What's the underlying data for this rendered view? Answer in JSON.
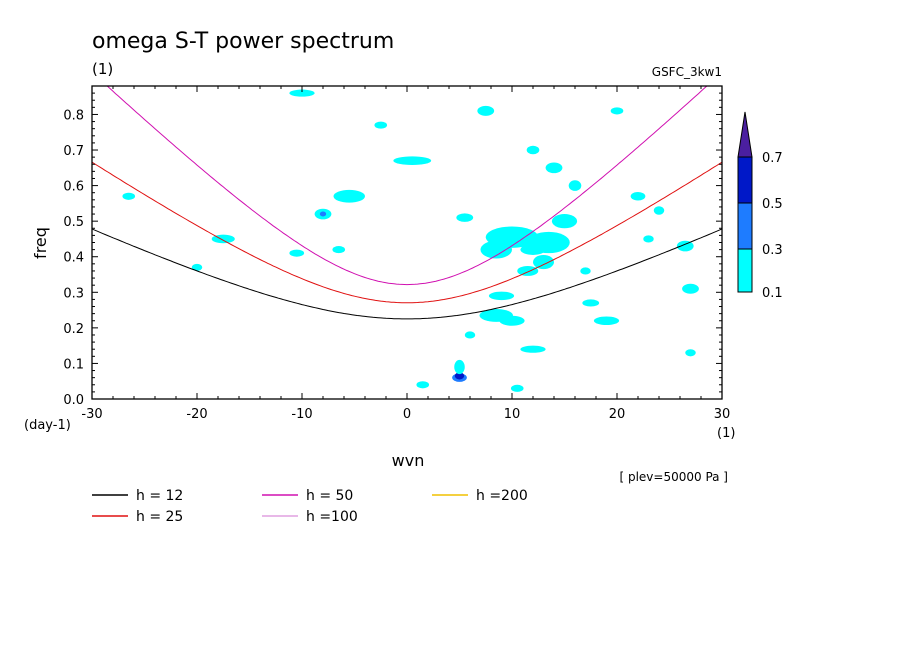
{
  "chart_data": {
    "type": "contour",
    "title": "omega S-T power spectrum",
    "subtitle": "(1)",
    "model": "GSFC_3kw1",
    "xlabel": "wvn",
    "ylabel": "freq",
    "x_unit": "(1)",
    "y_unit": "(day-1)",
    "level_note": "[ plev=50000 Pa ]",
    "xlim": [
      -30,
      30
    ],
    "ylim": [
      0,
      0.88
    ],
    "xticks": [
      -30,
      -20,
      -10,
      0,
      10,
      20,
      30
    ],
    "xtick_labels": [
      "-30",
      "-20",
      "-10",
      "0",
      "10",
      "20",
      "30"
    ],
    "yticks": [
      0,
      0.1,
      0.2,
      0.3,
      0.4,
      0.5,
      0.6,
      0.7,
      0.8
    ],
    "ytick_labels": [
      "0.0",
      "0.1",
      "0.2",
      "0.3",
      "0.4",
      "0.5",
      "0.6",
      "0.7",
      "0.8"
    ],
    "colorbar": {
      "levels": [
        "0.1",
        "0.3",
        "0.5",
        "0.7"
      ],
      "colors": [
        "#00ffff",
        "#1e7cff",
        "#0018c8",
        "#4b1fa0"
      ]
    },
    "series": [
      {
        "name": "h = 12",
        "equivalent_depth": 12,
        "color": "#000000"
      },
      {
        "name": "h = 25",
        "equivalent_depth": 25,
        "color": "#e01010"
      },
      {
        "name": "h = 50",
        "equivalent_depth": 50,
        "color": "#d010b0"
      },
      {
        "name": "h =100",
        "equivalent_depth": 100,
        "color": "#e0a0e0"
      },
      {
        "name": "h =200",
        "equivalent_depth": 200,
        "color": "#f0c000"
      }
    ],
    "blobs": [
      [
        5,
        0.06,
        0.7,
        0.012,
        1
      ],
      [
        5,
        0.065,
        0.45,
        0.01,
        2
      ],
      [
        5,
        0.09,
        0.5,
        0.02,
        0
      ],
      [
        10.5,
        0.465,
        1.2,
        0.01,
        2
      ],
      [
        10,
        0.455,
        2.5,
        0.03,
        0
      ],
      [
        8.5,
        0.42,
        1.5,
        0.025,
        0
      ],
      [
        12,
        0.42,
        1.2,
        0.015,
        0
      ],
      [
        13.5,
        0.44,
        2,
        0.03,
        0
      ],
      [
        13,
        0.385,
        1,
        0.02,
        0
      ],
      [
        8.5,
        0.24,
        0.6,
        0.01,
        1
      ],
      [
        8.5,
        0.235,
        1.6,
        0.018,
        0
      ],
      [
        10,
        0.22,
        1.2,
        0.014,
        0
      ],
      [
        12,
        0.14,
        1.2,
        0.01,
        0
      ],
      [
        9,
        0.29,
        1.2,
        0.012,
        0
      ],
      [
        11.5,
        0.36,
        1,
        0.014,
        0
      ],
      [
        -5.5,
        0.57,
        1.5,
        0.018,
        0
      ],
      [
        -8,
        0.52,
        0.8,
        0.015,
        0
      ],
      [
        -8,
        0.52,
        0.3,
        0.007,
        1
      ],
      [
        0.5,
        0.67,
        1.8,
        0.012,
        0
      ],
      [
        -17.5,
        0.45,
        1.1,
        0.012,
        0
      ],
      [
        -10.5,
        0.41,
        0.7,
        0.01,
        0
      ],
      [
        7.5,
        0.81,
        0.8,
        0.014,
        0
      ],
      [
        14,
        0.65,
        0.8,
        0.015,
        0
      ],
      [
        16,
        0.6,
        0.6,
        0.015,
        0
      ],
      [
        12,
        0.7,
        0.6,
        0.012,
        0
      ],
      [
        15,
        0.5,
        1.2,
        0.02,
        0
      ],
      [
        19,
        0.22,
        1.2,
        0.012,
        0
      ],
      [
        17.5,
        0.27,
        0.8,
        0.01,
        0
      ],
      [
        26.5,
        0.43,
        0.8,
        0.015,
        0
      ],
      [
        27,
        0.31,
        0.8,
        0.014,
        0
      ],
      [
        22,
        0.57,
        0.7,
        0.012,
        0
      ],
      [
        24,
        0.53,
        0.5,
        0.012,
        0
      ],
      [
        -10,
        0.86,
        1.2,
        0.01,
        0
      ],
      [
        -26.5,
        0.57,
        0.6,
        0.01,
        0
      ],
      [
        -20,
        0.37,
        0.5,
        0.01,
        0
      ],
      [
        1.5,
        0.04,
        0.6,
        0.01,
        0
      ],
      [
        10.5,
        0.03,
        0.6,
        0.01,
        0
      ],
      [
        6,
        0.18,
        0.5,
        0.01,
        0
      ],
      [
        -6.5,
        0.42,
        0.6,
        0.01,
        0
      ],
      [
        -2.5,
        0.77,
        0.6,
        0.01,
        0
      ],
      [
        20,
        0.81,
        0.6,
        0.01,
        0
      ],
      [
        27,
        0.13,
        0.5,
        0.01,
        0
      ],
      [
        17,
        0.36,
        0.5,
        0.01,
        0
      ],
      [
        23,
        0.45,
        0.5,
        0.01,
        0
      ],
      [
        5.5,
        0.51,
        0.8,
        0.012,
        0
      ]
    ]
  }
}
